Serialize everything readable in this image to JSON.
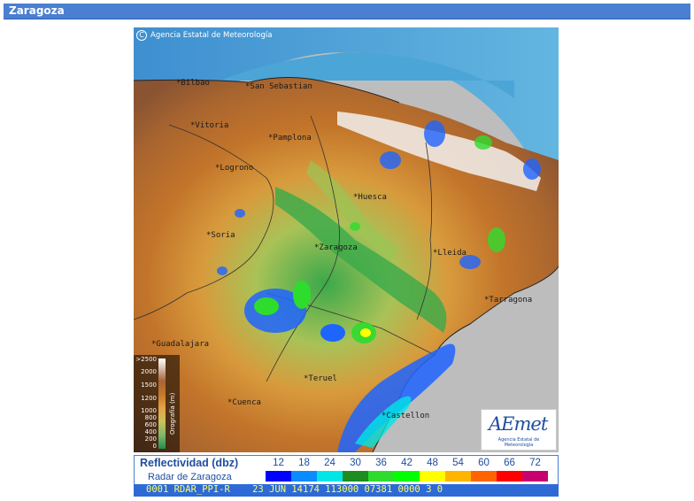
{
  "window": {
    "title": "Zaragoza"
  },
  "map": {
    "copyright": "Agencia Estatal de Meteorología",
    "copyright_symbol": "C",
    "cities": [
      {
        "name": "Bilbao"
      },
      {
        "name": "San Sebastian"
      },
      {
        "name": "Vitoria"
      },
      {
        "name": "Pamplona"
      },
      {
        "name": "Logrono"
      },
      {
        "name": "Huesca"
      },
      {
        "name": "Soria"
      },
      {
        "name": "Zaragoza"
      },
      {
        "name": "Lleida"
      },
      {
        "name": "Tarragona"
      },
      {
        "name": "Guadalajara"
      },
      {
        "name": "Teruel"
      },
      {
        "name": "Cuenca"
      },
      {
        "name": "Castellon"
      }
    ],
    "orography_legend": {
      "title": "Orografía (m)",
      "ticks": [
        ">2500",
        "2000",
        "1500",
        "1200",
        "1000",
        "800",
        "600",
        "400",
        "200",
        "0"
      ]
    },
    "logo": {
      "mark": "AEmet",
      "subtitle": "Agencia Estatal de Meteorología"
    }
  },
  "legend": {
    "title": "Reflectividad (dbz)",
    "subtitle": "Radar de Zaragoza",
    "scale": [
      {
        "value": "12",
        "color": "#0000ff"
      },
      {
        "value": "18",
        "color": "#0a8cff"
      },
      {
        "value": "24",
        "color": "#00e6e6"
      },
      {
        "value": "30",
        "color": "#1e8c1e"
      },
      {
        "value": "36",
        "color": "#2edc2e"
      },
      {
        "value": "42",
        "color": "#00ff00"
      },
      {
        "value": "48",
        "color": "#ffff00"
      },
      {
        "value": "54",
        "color": "#ffb400"
      },
      {
        "value": "60",
        "color": "#ff6400"
      },
      {
        "value": "66",
        "color": "#ff0000"
      },
      {
        "value": "72",
        "color": "#c8006e"
      }
    ]
  },
  "status_line": "0001 RDAR_PPI-R    23 JUN 14174 113000 07381 0000 3 0"
}
